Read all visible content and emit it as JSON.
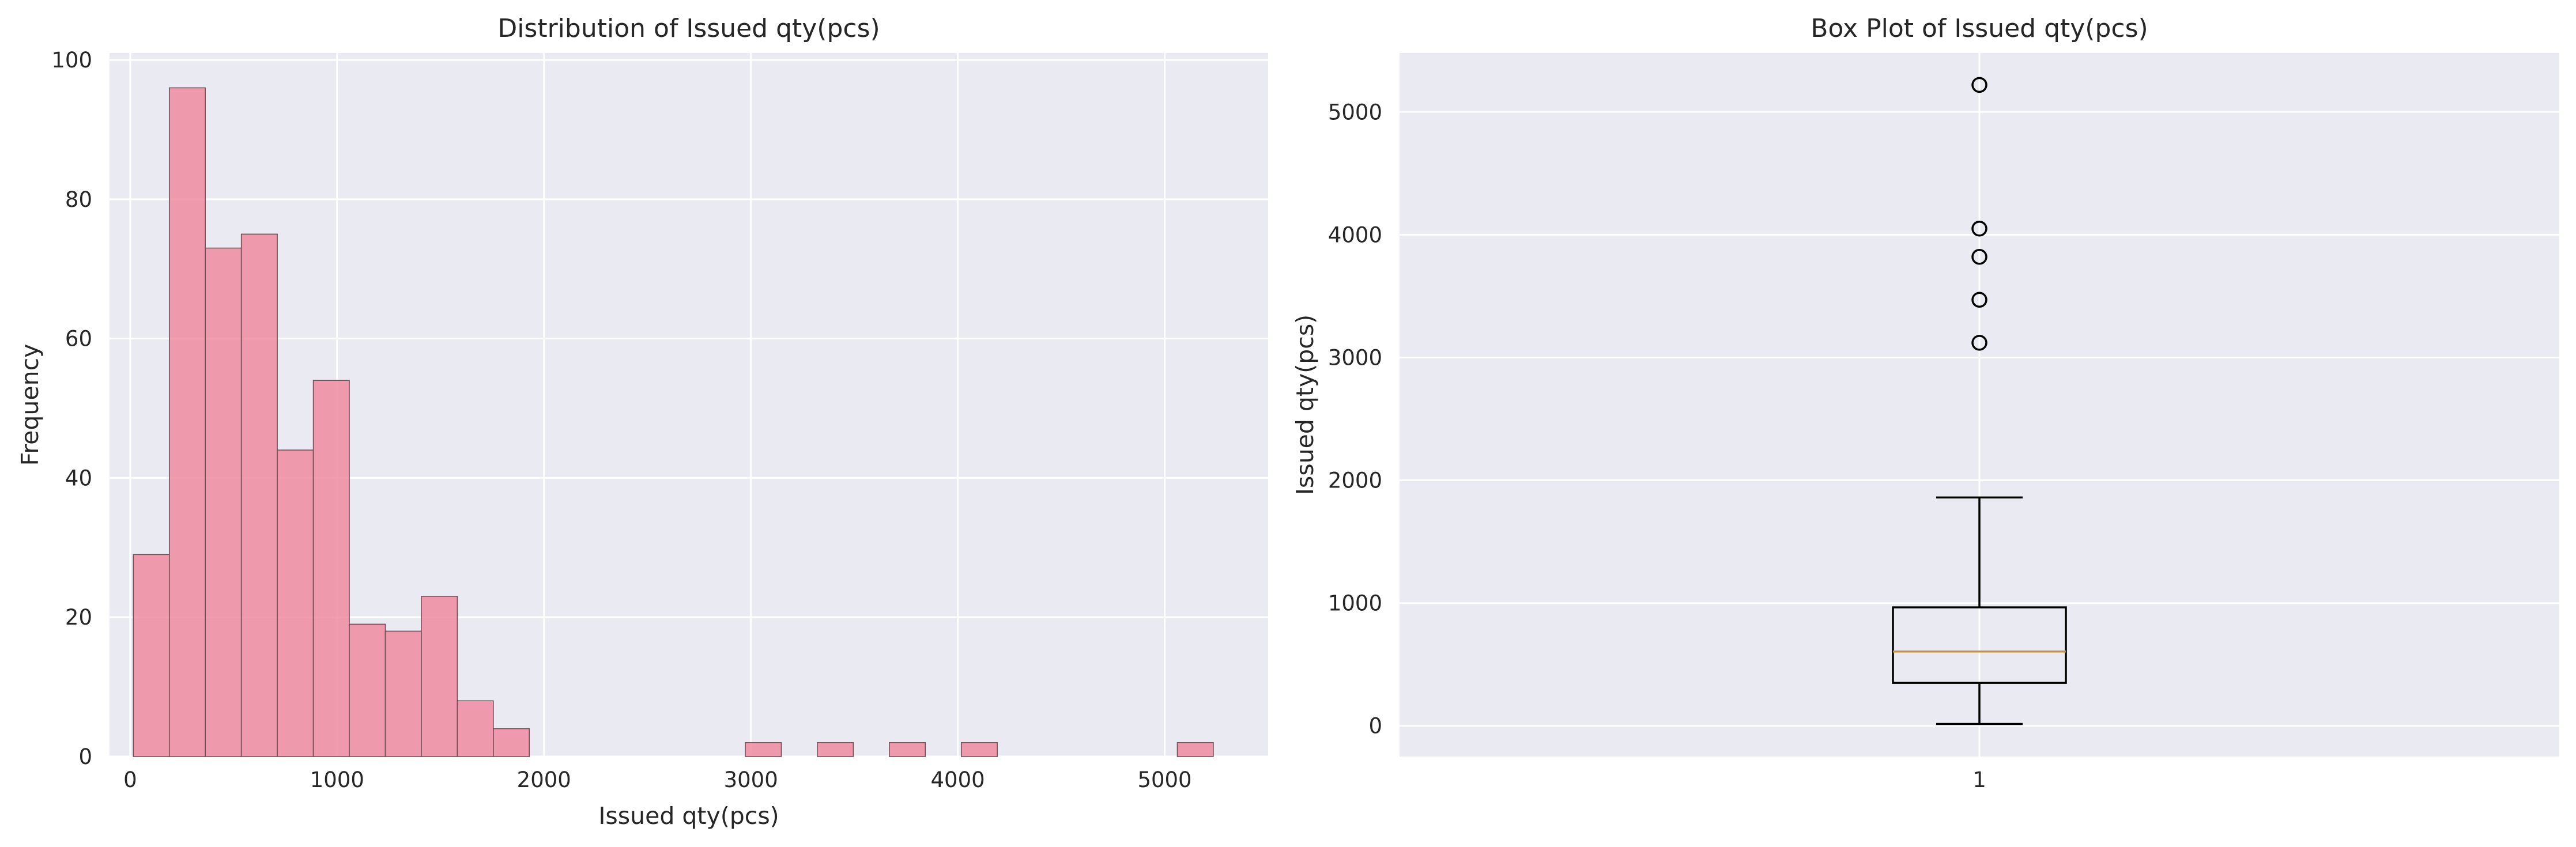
{
  "chart_data": [
    {
      "type": "bar",
      "title": "Distribution of Issued qty(pcs)",
      "xlabel": "Issued qty(pcs)",
      "ylabel": "Frequency",
      "xlim": [
        -100,
        5500
      ],
      "ylim": [
        0,
        101
      ],
      "xticks": [
        0,
        1000,
        2000,
        3000,
        4000,
        5000
      ],
      "yticks": [
        0,
        20,
        40,
        60,
        80,
        100
      ],
      "bins": [
        {
          "x0": 15,
          "x1": 189,
          "count": 29
        },
        {
          "x0": 189,
          "x1": 363,
          "count": 96
        },
        {
          "x0": 363,
          "x1": 537,
          "count": 73
        },
        {
          "x0": 537,
          "x1": 711,
          "count": 75
        },
        {
          "x0": 711,
          "x1": 885,
          "count": 44
        },
        {
          "x0": 885,
          "x1": 1059,
          "count": 54
        },
        {
          "x0": 1059,
          "x1": 1233,
          "count": 19
        },
        {
          "x0": 1233,
          "x1": 1407,
          "count": 18
        },
        {
          "x0": 1407,
          "x1": 1581,
          "count": 23
        },
        {
          "x0": 1581,
          "x1": 1755,
          "count": 8
        },
        {
          "x0": 1755,
          "x1": 1929,
          "count": 4
        },
        {
          "x0": 2973,
          "x1": 3147,
          "count": 2
        },
        {
          "x0": 3321,
          "x1": 3495,
          "count": 2
        },
        {
          "x0": 3669,
          "x1": 3843,
          "count": 2
        },
        {
          "x0": 4017,
          "x1": 4191,
          "count": 2
        },
        {
          "x0": 5061,
          "x1": 5235,
          "count": 2
        }
      ],
      "bar_color": "#f08ca0",
      "grid": true
    },
    {
      "type": "box",
      "title": "Box Plot of Issued qty(pcs)",
      "ylabel": "Issued qty(pcs)",
      "categories": [
        "1"
      ],
      "ylim": [
        -250,
        5480
      ],
      "yticks": [
        0,
        1000,
        2000,
        3000,
        4000,
        5000
      ],
      "box": {
        "whisker_low": 15,
        "q1": 350,
        "median": 605,
        "q3": 965,
        "whisker_high": 1860,
        "outliers": [
          3120,
          3470,
          3820,
          4050,
          5220
        ]
      },
      "median_color": "#c8923c",
      "grid": true
    }
  ]
}
